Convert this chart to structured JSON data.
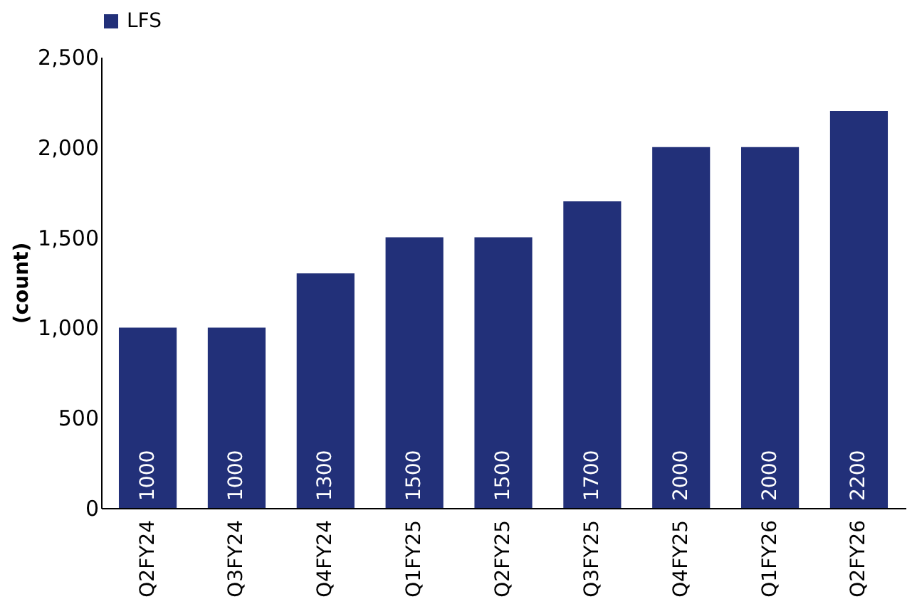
{
  "chart_data": {
    "type": "bar",
    "ylabel": "(count)",
    "categories": [
      "Q2FY24",
      "Q3FY24",
      "Q4FY24",
      "Q1FY25",
      "Q2FY25",
      "Q3FY25",
      "Q4FY25",
      "Q1FY26",
      "Q2FY26"
    ],
    "series": [
      {
        "name": "LFS",
        "color": "#223079",
        "values": [
          1000,
          1000,
          1300,
          1500,
          1500,
          1700,
          2000,
          2000,
          2200
        ]
      }
    ],
    "ylim": [
      0,
      2500
    ],
    "yticks": [
      0,
      {
        "value": 500,
        "label": "500"
      },
      {
        "value": 1000,
        "label": "1,000"
      },
      {
        "value": 1500,
        "label": "1,500"
      },
      {
        "value": 2000,
        "label": "2,000"
      },
      {
        "value": 2500,
        "label": "2,500"
      }
    ],
    "data_labels": true,
    "grid": false,
    "legend": "top"
  }
}
